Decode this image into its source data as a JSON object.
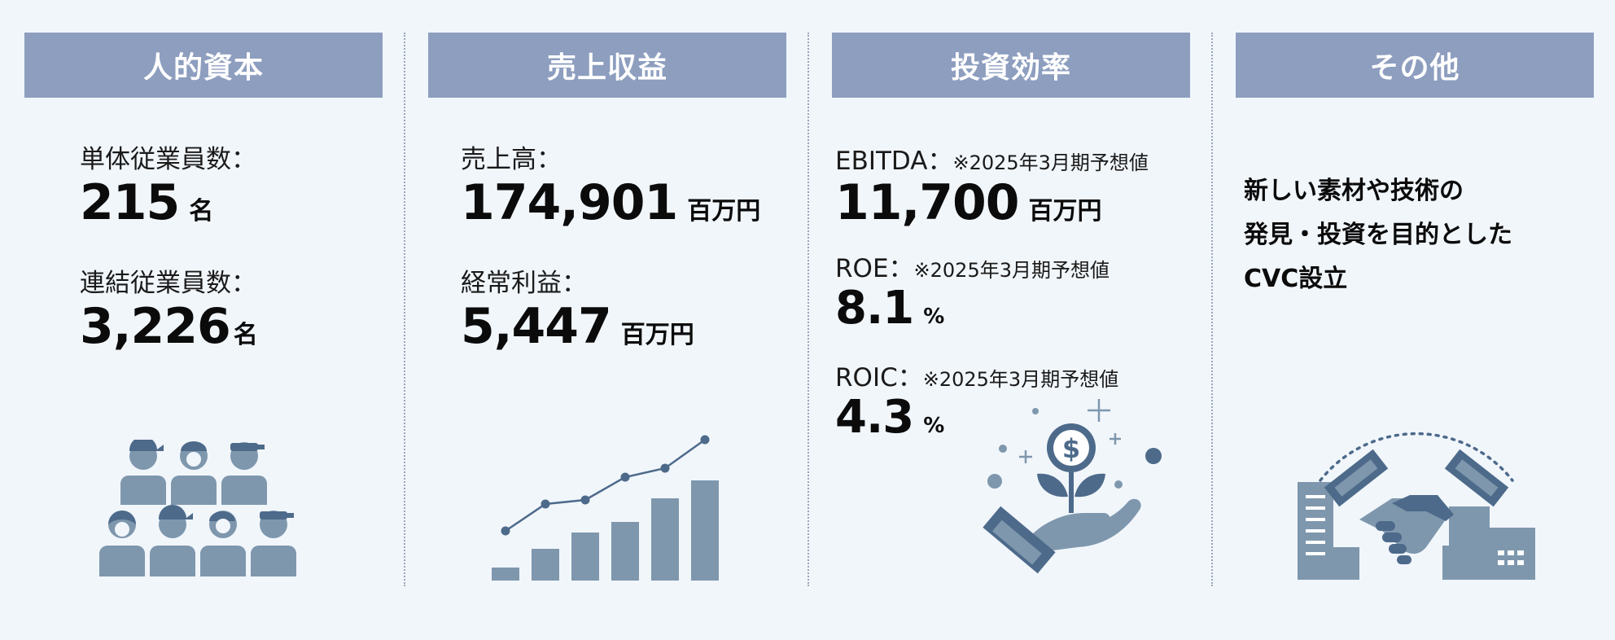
{
  "colors": {
    "header_bg": "#8d9ebf",
    "icon_fill": "#7e97ad",
    "icon_dark": "#4d6a8a"
  },
  "human_capital": {
    "title": "人的資本",
    "single_label": "単体従業員数：",
    "single_value": "215",
    "single_unit": "名",
    "consolidated_label": "連結従業員数：",
    "consolidated_value": "3,226",
    "consolidated_unit": "名",
    "icon": "people-group-icon"
  },
  "revenue": {
    "title": "売上収益",
    "sales_label": "売上高：",
    "sales_value": "174,901",
    "sales_unit": "百万円",
    "ordinary_label": "経常利益：",
    "ordinary_value": "5,447",
    "ordinary_unit": "百万円",
    "icon": "growth-chart-icon"
  },
  "investment": {
    "title": "投資効率",
    "ebitda_label": "EBITDA：",
    "ebitda_note": "※2025年3月期予想値",
    "ebitda_value": "11,700",
    "ebitda_unit": "百万円",
    "roe_label": "ROE：",
    "roe_note": "※2025年3月期予想値",
    "roe_value": "8.1",
    "roe_unit": "%",
    "roic_label": "ROIC：",
    "roic_note": "※2025年3月期予想値",
    "roic_value": "4.3",
    "roic_unit": "%",
    "icon": "money-plant-hand-icon"
  },
  "other": {
    "title": "その他",
    "lines": [
      "新しい素材や技術の",
      "発見・投資を目的とした",
      "CVC設立"
    ],
    "icon": "handshake-buildings-icon"
  }
}
